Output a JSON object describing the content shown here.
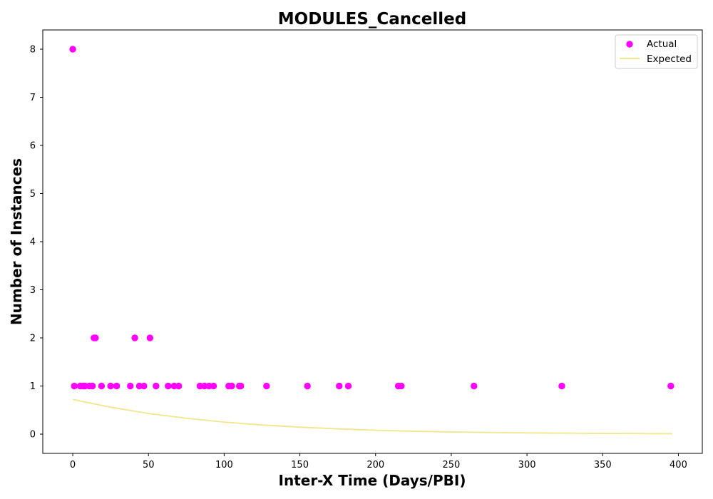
{
  "chart_data": {
    "type": "scatter",
    "title": "MODULES_Cancelled",
    "xlabel": "Inter-X Time (Days/PBI)",
    "ylabel": "Number of Instances",
    "xlim": [
      -19.8,
      415.8
    ],
    "ylim": [
      -0.4,
      8.4
    ],
    "xticks": [
      0,
      50,
      100,
      150,
      200,
      250,
      300,
      350,
      400
    ],
    "yticks": [
      0,
      1,
      2,
      3,
      4,
      5,
      6,
      7,
      8
    ],
    "grid": false,
    "legend_position": "top-right",
    "series": [
      {
        "name": "Actual",
        "kind": "scatter",
        "color": "#ff00ff",
        "points": [
          [
            0,
            8
          ],
          [
            1,
            1
          ],
          [
            5,
            1
          ],
          [
            7,
            1
          ],
          [
            8,
            1
          ],
          [
            11,
            1
          ],
          [
            13,
            1
          ],
          [
            14,
            2
          ],
          [
            15,
            2
          ],
          [
            19,
            1
          ],
          [
            25,
            1
          ],
          [
            29,
            1
          ],
          [
            38,
            1
          ],
          [
            41,
            2
          ],
          [
            44,
            1
          ],
          [
            47,
            1
          ],
          [
            51,
            2
          ],
          [
            55,
            1
          ],
          [
            63,
            1
          ],
          [
            67,
            1
          ],
          [
            70,
            1
          ],
          [
            84,
            1
          ],
          [
            87,
            1
          ],
          [
            90,
            1
          ],
          [
            93,
            1
          ],
          [
            103,
            1
          ],
          [
            105,
            1
          ],
          [
            110,
            1
          ],
          [
            111,
            1
          ],
          [
            128,
            1
          ],
          [
            155,
            1
          ],
          [
            176,
            1
          ],
          [
            182,
            1
          ],
          [
            215,
            1
          ],
          [
            217,
            1
          ],
          [
            265,
            1
          ],
          [
            323,
            1
          ],
          [
            395,
            1
          ]
        ]
      },
      {
        "name": "Expected",
        "kind": "line",
        "color": "#f0e68c",
        "points": [
          [
            0,
            0.72
          ],
          [
            25,
            0.56
          ],
          [
            50,
            0.43
          ],
          [
            75,
            0.33
          ],
          [
            100,
            0.25
          ],
          [
            125,
            0.19
          ],
          [
            150,
            0.145
          ],
          [
            175,
            0.11
          ],
          [
            200,
            0.08
          ],
          [
            225,
            0.06
          ],
          [
            250,
            0.045
          ],
          [
            275,
            0.035
          ],
          [
            300,
            0.026
          ],
          [
            325,
            0.02
          ],
          [
            350,
            0.015
          ],
          [
            375,
            0.011
          ],
          [
            396,
            0.008
          ]
        ]
      }
    ]
  }
}
